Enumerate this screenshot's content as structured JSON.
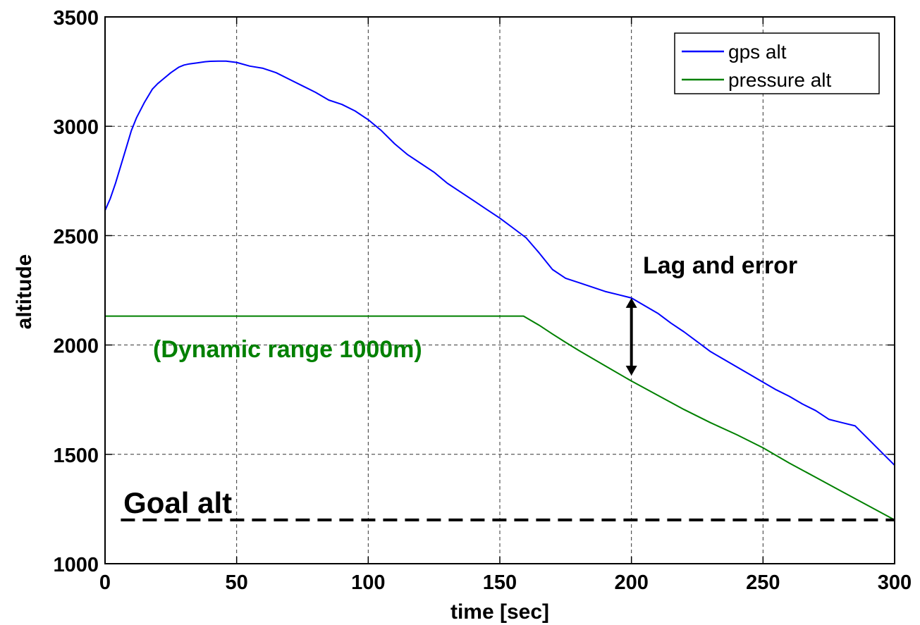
{
  "chart_data": {
    "type": "line",
    "title": "",
    "xlabel": "time [sec]",
    "ylabel": "altitude",
    "xlim": [
      0,
      300
    ],
    "ylim": [
      1000,
      3500
    ],
    "xticks": [
      0,
      50,
      100,
      150,
      200,
      250,
      300
    ],
    "yticks": [
      1000,
      1500,
      2000,
      2500,
      3000,
      3500
    ],
    "xtick_labels": [
      "0",
      "50",
      "100",
      "150",
      "200",
      "250",
      "300"
    ],
    "ytick_labels": [
      "1000",
      "1500",
      "2000",
      "2500",
      "3000",
      "3500"
    ],
    "grid": true,
    "legend_position": "top-right",
    "series": [
      {
        "name": "gps alt",
        "color": "#0000ff",
        "x": [
          0,
          2,
          4,
          6,
          8,
          10,
          12,
          15,
          18,
          20,
          22,
          25,
          28,
          30,
          32,
          35,
          38,
          40,
          43,
          46,
          50,
          55,
          60,
          65,
          70,
          75,
          80,
          85,
          90,
          95,
          100,
          105,
          110,
          115,
          120,
          125,
          130,
          135,
          140,
          145,
          150,
          155,
          160,
          165,
          170,
          175,
          180,
          185,
          190,
          195,
          200,
          205,
          210,
          215,
          220,
          225,
          230,
          235,
          240,
          245,
          250,
          255,
          260,
          265,
          270,
          275,
          280,
          285,
          290,
          295,
          300
        ],
        "values": [
          2615,
          2670,
          2740,
          2820,
          2900,
          2980,
          3040,
          3110,
          3170,
          3195,
          3215,
          3245,
          3270,
          3280,
          3285,
          3290,
          3295,
          3297,
          3298,
          3298,
          3292,
          3275,
          3265,
          3245,
          3215,
          3185,
          3155,
          3120,
          3100,
          3070,
          3030,
          2980,
          2920,
          2870,
          2830,
          2790,
          2740,
          2700,
          2660,
          2620,
          2580,
          2535,
          2490,
          2420,
          2345,
          2305,
          2285,
          2265,
          2245,
          2230,
          2215,
          2180,
          2145,
          2100,
          2060,
          2015,
          1970,
          1935,
          1900,
          1865,
          1830,
          1795,
          1765,
          1730,
          1700,
          1660,
          1645,
          1630,
          1570,
          1510,
          1450
        ]
      },
      {
        "name": "pressure alt",
        "color": "#008000",
        "x": [
          0,
          30,
          60,
          90,
          120,
          150,
          159,
          165,
          170,
          175,
          180,
          190,
          200,
          210,
          220,
          230,
          240,
          250,
          260,
          270,
          280,
          290,
          300
        ],
        "values": [
          2132,
          2132,
          2132,
          2132,
          2132,
          2132,
          2132,
          2090,
          2050,
          2012,
          1975,
          1905,
          1835,
          1770,
          1705,
          1645,
          1590,
          1530,
          1460,
          1395,
          1330,
          1265,
          1200
        ]
      }
    ],
    "reference_line": {
      "label": "Goal alt",
      "y": 1200,
      "style": "dashed",
      "color": "#000000"
    },
    "annotations": [
      {
        "text": "Lag and error",
        "x": 207,
        "y": 2330,
        "color": "#000000"
      },
      {
        "text": "(Dynamic range 1000m)",
        "x": 19,
        "y": 1975,
        "color": "#008000"
      }
    ],
    "error_arrow": {
      "x": 200,
      "y_top": 2215,
      "y_bottom": 1860
    }
  }
}
